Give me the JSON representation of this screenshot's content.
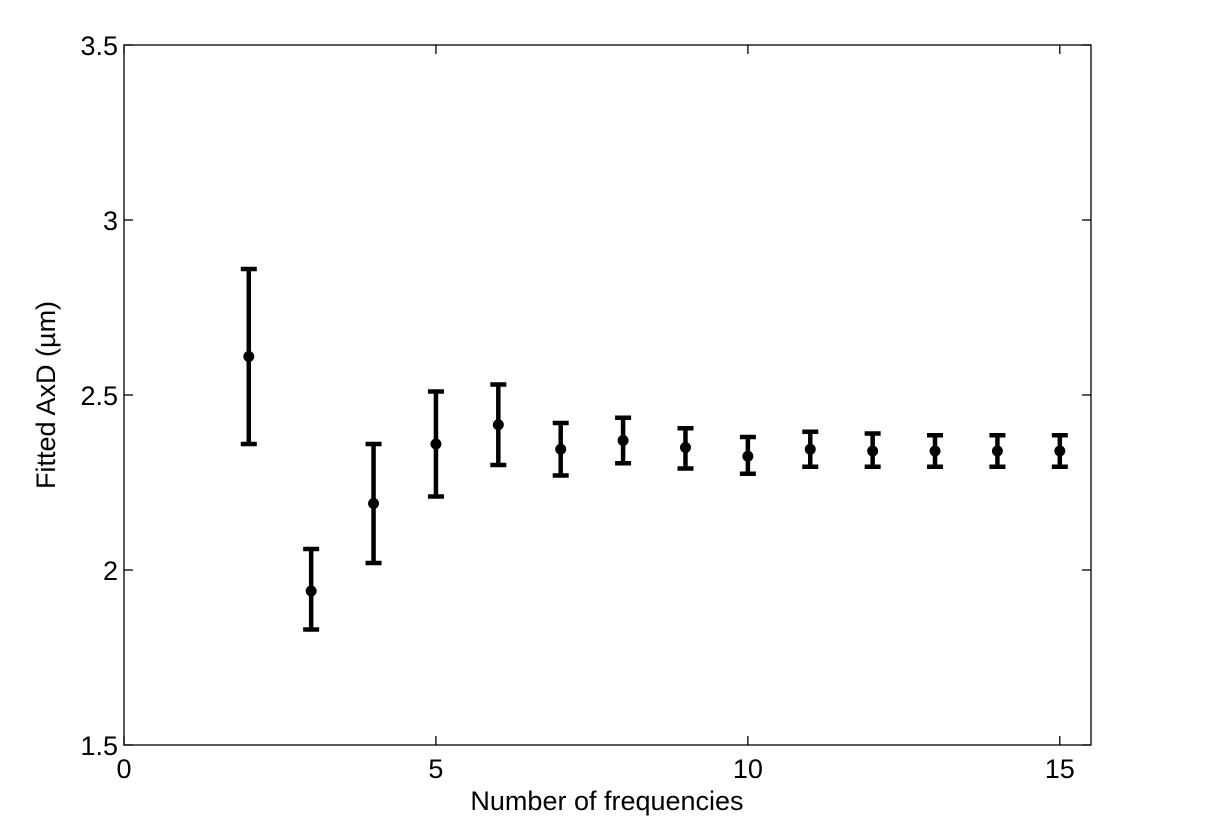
{
  "chart_data": {
    "type": "scatter",
    "title": "",
    "xlabel": "Number of frequencies",
    "ylabel": "Fitted AxD (µm)",
    "xlim": [
      0,
      15.5
    ],
    "ylim": [
      1.5,
      3.5
    ],
    "xticks": [
      0,
      5,
      10,
      15
    ],
    "yticks": [
      1.5,
      2,
      2.5,
      3,
      3.5
    ],
    "xtick_labels": [
      "0",
      "5",
      "10",
      "15"
    ],
    "ytick_labels": [
      "1.5",
      "2",
      "2.5",
      "3",
      "3.5"
    ],
    "grid": false,
    "legend": "none",
    "marker": "filled-circle",
    "errorbars": true,
    "color": "#000000",
    "points": [
      {
        "x": 2,
        "y": 2.61,
        "lower": 2.36,
        "upper": 2.86
      },
      {
        "x": 3,
        "y": 1.94,
        "lower": 1.83,
        "upper": 2.06
      },
      {
        "x": 4,
        "y": 2.19,
        "lower": 2.02,
        "upper": 2.36
      },
      {
        "x": 5,
        "y": 2.36,
        "lower": 2.21,
        "upper": 2.51
      },
      {
        "x": 6,
        "y": 2.415,
        "lower": 2.3,
        "upper": 2.53
      },
      {
        "x": 7,
        "y": 2.345,
        "lower": 2.27,
        "upper": 2.42
      },
      {
        "x": 8,
        "y": 2.37,
        "lower": 2.305,
        "upper": 2.435
      },
      {
        "x": 9,
        "y": 2.35,
        "lower": 2.29,
        "upper": 2.405
      },
      {
        "x": 10,
        "y": 2.325,
        "lower": 2.275,
        "upper": 2.38
      },
      {
        "x": 11,
        "y": 2.345,
        "lower": 2.295,
        "upper": 2.395
      },
      {
        "x": 12,
        "y": 2.34,
        "lower": 2.295,
        "upper": 2.39
      },
      {
        "x": 13,
        "y": 2.34,
        "lower": 2.295,
        "upper": 2.385
      },
      {
        "x": 14,
        "y": 2.34,
        "lower": 2.295,
        "upper": 2.385
      },
      {
        "x": 15,
        "y": 2.34,
        "lower": 2.295,
        "upper": 2.385
      }
    ]
  }
}
